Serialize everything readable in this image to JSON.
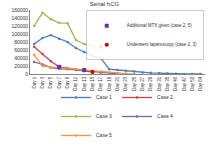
{
  "chart_data": {
    "type": "line",
    "title": "Serial hCG",
    "categories": [
      "Day 1",
      "Day 3",
      "Day 5",
      "Day 7",
      "Day 9",
      "Day 11",
      "Day 13",
      "Day 15",
      "Day 17",
      "Day 19",
      "Day 21",
      "Day 23",
      "Day 25",
      "Day 27",
      "Day 29",
      "Day 31",
      "Day 35",
      "Day 40",
      "Day 47",
      "Day 52",
      "Day 64"
    ],
    "ylim": [
      0,
      160000
    ],
    "yticks": [
      0,
      20000,
      40000,
      60000,
      80000,
      100000,
      120000,
      140000,
      160000
    ],
    "grid": false,
    "legend": "bottom",
    "series": [
      {
        "name": "Case 1",
        "color": "#4a7ebb",
        "marker": "circle",
        "line_style": "solid",
        "values": [
          75000,
          90000,
          97000,
          88000,
          80000,
          65000,
          55000,
          45000,
          40000,
          12000,
          10000,
          8000,
          6000,
          4000,
          3000,
          2000,
          1000,
          500,
          200,
          100,
          0
        ]
      },
      {
        "name": "Case 2",
        "color": "#be4b48",
        "marker": "circle",
        "line_style": "solid",
        "values": [
          68000,
          50000,
          32000,
          18000,
          15000,
          12000,
          8000,
          5000,
          null,
          null,
          null,
          null,
          null,
          null,
          null,
          null,
          null,
          null,
          null,
          null,
          null
        ]
      },
      {
        "name": "Case 3",
        "color": "#98b954",
        "marker": "circle",
        "line_style": "solid",
        "values": [
          120000,
          153000,
          137000,
          128000,
          127000,
          85000,
          75000,
          70000,
          68000,
          null,
          null,
          null,
          null,
          null,
          null,
          null,
          null,
          null,
          null,
          null,
          null
        ]
      },
      {
        "name": "Case 4",
        "color": "#7d60a0",
        "marker": "circle",
        "line_style": "solid",
        "values": [
          30000,
          24000,
          16000,
          13000,
          12000,
          10000,
          7000,
          5000,
          3000,
          2000,
          1000,
          null,
          null,
          null,
          null,
          null,
          null,
          null,
          null,
          null,
          null
        ]
      },
      {
        "name": "Case 5",
        "color": "#f79646",
        "marker": "circle",
        "line_style": "solid",
        "values": [
          48000,
          20000,
          17000,
          16000,
          14000,
          12000,
          10000,
          8000,
          6000,
          4000,
          2000,
          1000,
          500,
          null,
          null,
          null,
          null,
          null,
          null,
          null,
          null
        ]
      },
      {
        "name": "Additional MTX given (case 2, 5)",
        "type": "scatter",
        "color": "#7030a0",
        "marker": "square",
        "values": [
          null,
          null,
          null,
          18000,
          null,
          null,
          10000,
          null,
          null,
          null,
          null,
          null,
          null,
          null,
          null,
          null,
          null,
          null,
          null,
          null,
          null
        ]
      },
      {
        "name": "Underwent laparoscopy (case 2, 3)",
        "type": "scatter",
        "color": "#c00000",
        "marker": "circle",
        "values": [
          null,
          null,
          null,
          null,
          null,
          null,
          null,
          5000,
          68000,
          null,
          null,
          null,
          null,
          null,
          null,
          null,
          null,
          null,
          null,
          null,
          null
        ]
      }
    ]
  }
}
